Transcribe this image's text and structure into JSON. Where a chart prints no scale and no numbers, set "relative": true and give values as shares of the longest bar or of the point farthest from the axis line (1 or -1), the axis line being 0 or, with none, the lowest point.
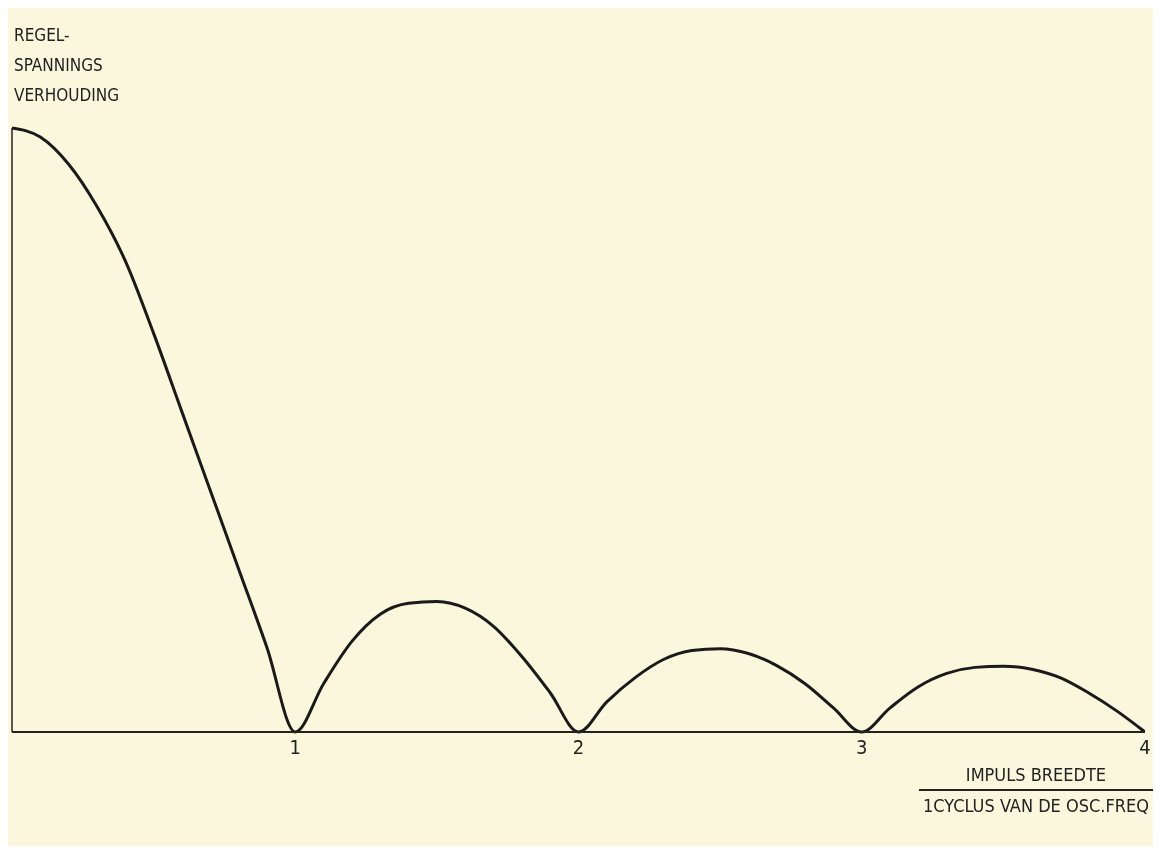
{
  "chart_data": {
    "type": "line",
    "ylabel": "REGEL-\nSPANNINGS\nVERHOUDING",
    "xlabel": "IMPULS BREEDTE\n1CYCLUS VAN DE OSC.FREQ",
    "relative": true,
    "xlim": [
      0,
      4
    ],
    "xticks": [
      1,
      2,
      3,
      4
    ],
    "grid": false,
    "legend": false,
    "marker": "none",
    "line_style": "solid",
    "x": [
      0,
      0.1,
      0.2,
      0.3,
      0.4,
      0.5,
      0.6,
      0.7,
      0.8,
      0.9,
      1,
      1.1,
      1.2,
      1.3,
      1.4,
      1.5,
      1.6,
      1.7,
      1.8,
      1.9,
      2,
      2.1,
      2.2,
      2.3,
      2.4,
      2.5,
      2.6,
      2.7,
      2.8,
      2.9,
      3,
      3.1,
      3.2,
      3.3,
      3.4,
      3.5,
      3.6,
      3.7,
      3.8,
      3.9,
      4
    ],
    "series": [
      {
        "color": "#1a1a1a",
        "values": [
          1,
          0.985,
          0.94,
          0.87,
          0.78,
          0.66,
          0.53,
          0.4,
          0.27,
          0.14,
          0,
          0.08,
          0.15,
          0.195,
          0.213,
          0.216,
          0.205,
          0.175,
          0.125,
          0.065,
          0,
          0.05,
          0.09,
          0.12,
          0.135,
          0.138,
          0.13,
          0.11,
          0.08,
          0.04,
          0,
          0.04,
          0.075,
          0.097,
          0.107,
          0.109,
          0.104,
          0.09,
          0.065,
          0.035,
          0
        ]
      }
    ]
  }
}
